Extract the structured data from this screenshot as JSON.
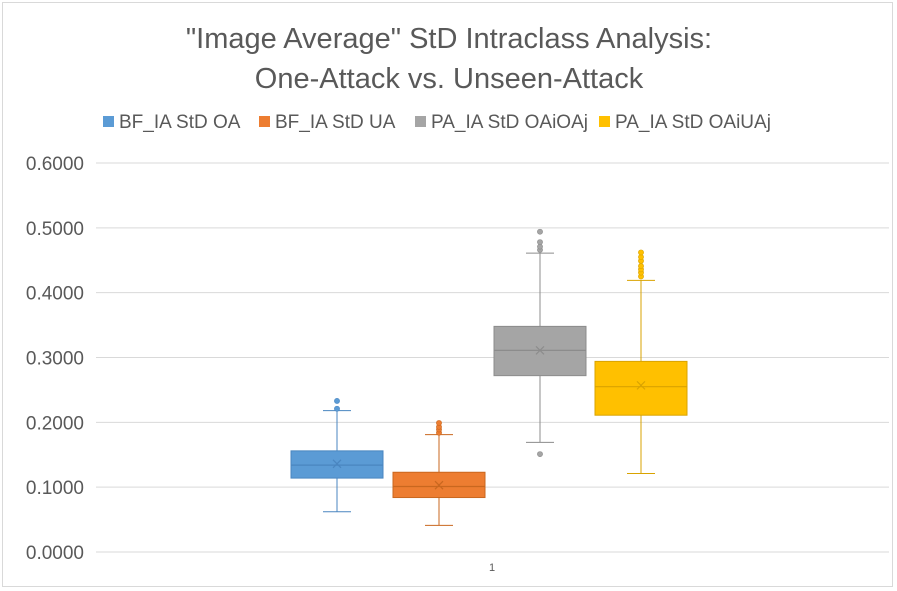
{
  "chart_data": {
    "type": "box",
    "title_lines": [
      "\"Image Average\" StD Intraclass Analysis:",
      "One-Attack vs. Unseen-Attack"
    ],
    "categories": [
      "1"
    ],
    "ylim": [
      0,
      0.6
    ],
    "ytick_step": 0.1,
    "ytick_labels": [
      "0.0000",
      "0.1000",
      "0.2000",
      "0.3000",
      "0.4000",
      "0.5000",
      "0.6000"
    ],
    "grid": true,
    "legend_position": "top",
    "series": [
      {
        "name": "BF_IA StD OA",
        "color": "#5b9bd5",
        "edge": "#4a86c0",
        "min": 0.062,
        "q1": 0.114,
        "median": 0.134,
        "q3": 0.156,
        "max": 0.218,
        "mean": 0.136,
        "outliers": [
          0.221,
          0.233
        ]
      },
      {
        "name": "BF_IA StD UA",
        "color": "#ed7d31",
        "edge": "#c9671f",
        "min": 0.041,
        "q1": 0.084,
        "median": 0.101,
        "q3": 0.123,
        "max": 0.181,
        "mean": 0.103,
        "outliers": [
          0.184,
          0.189,
          0.193,
          0.199
        ]
      },
      {
        "name": "PA_IA StD OAiOAj",
        "color": "#a5a5a5",
        "edge": "#8c8c8c",
        "min": 0.169,
        "q1": 0.272,
        "median": 0.311,
        "q3": 0.348,
        "max": 0.461,
        "mean": 0.311,
        "outliers": [
          0.151,
          0.466,
          0.471,
          0.478,
          0.494
        ]
      },
      {
        "name": "PA_IA StD OAiUAj",
        "color": "#ffc000",
        "edge": "#d9a300",
        "min": 0.121,
        "q1": 0.211,
        "median": 0.255,
        "q3": 0.294,
        "max": 0.419,
        "mean": 0.257,
        "outliers": [
          0.425,
          0.431,
          0.436,
          0.441,
          0.449,
          0.455,
          0.462
        ]
      }
    ]
  }
}
